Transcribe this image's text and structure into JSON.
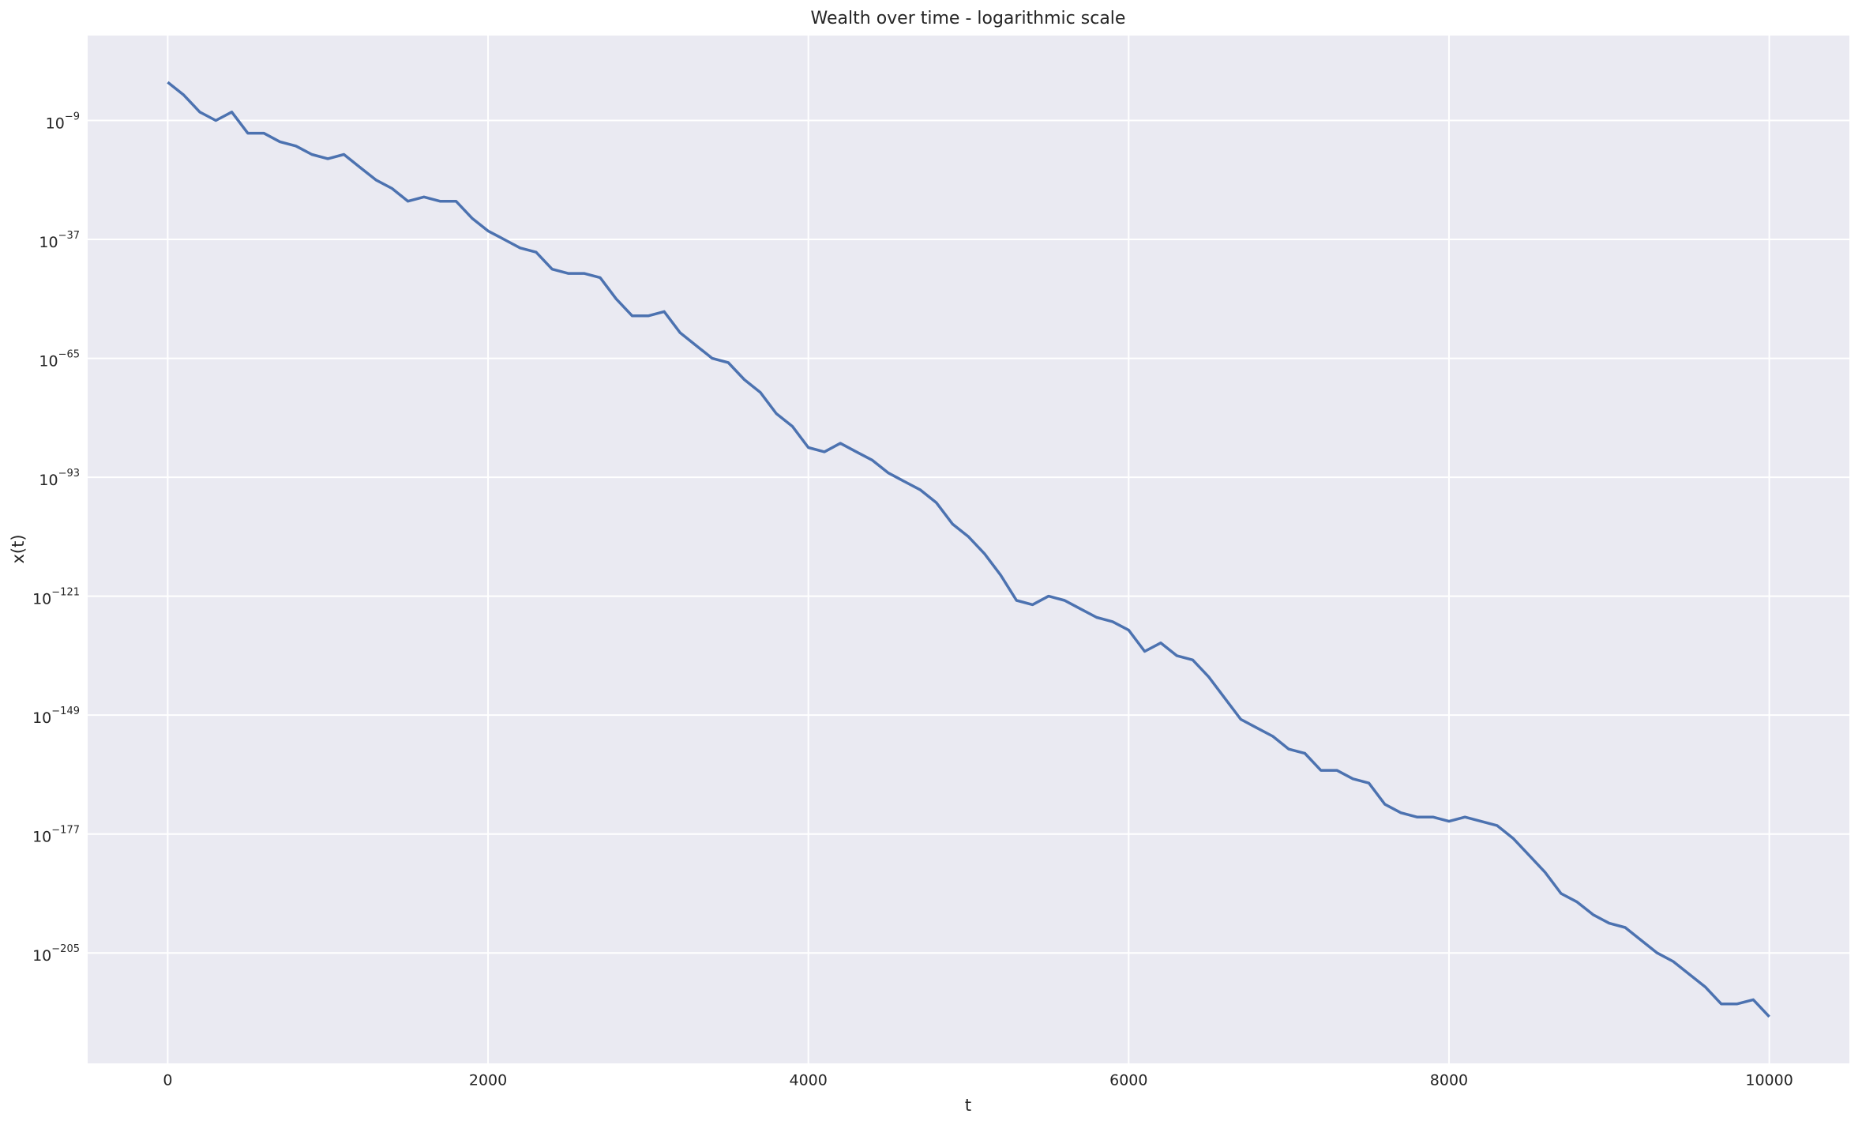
{
  "chart_data": {
    "type": "line",
    "title": "Wealth over time - logarithmic scale",
    "x_label": "t",
    "y_label": "x(t)",
    "y_scale": "log",
    "grid": true,
    "x": [
      0,
      100,
      200,
      300,
      400,
      500,
      600,
      700,
      800,
      900,
      1000,
      1100,
      1200,
      1300,
      1400,
      1500,
      1600,
      1700,
      1800,
      1900,
      2000,
      2100,
      2200,
      2300,
      2400,
      2500,
      2600,
      2700,
      2800,
      2900,
      3000,
      3100,
      3200,
      3300,
      3400,
      3500,
      3600,
      3700,
      3800,
      3900,
      4000,
      4100,
      4200,
      4300,
      4400,
      4500,
      4600,
      4700,
      4800,
      4900,
      5000,
      5100,
      5200,
      5300,
      5400,
      5500,
      5600,
      5700,
      5800,
      5900,
      6000,
      6100,
      6200,
      6300,
      6400,
      6500,
      6600,
      6700,
      6800,
      6900,
      7000,
      7100,
      7200,
      7300,
      7400,
      7500,
      7600,
      7700,
      7800,
      7900,
      8000,
      8100,
      8200,
      8300,
      8400,
      8500,
      8600,
      8700,
      8800,
      8900,
      9000,
      9100,
      9200,
      9300,
      9400,
      9500,
      9600,
      9700,
      9800,
      9900,
      10000
    ],
    "series": [
      {
        "name": "x(t)",
        "color": "#4c72b0",
        "values": [
          1,
          0.001,
          1e-07,
          1e-09,
          1e-07,
          1e-12,
          1e-12,
          1e-14,
          1e-15,
          1e-17,
          1e-18,
          1e-17,
          1e-20,
          1e-23,
          1e-25,
          1e-28,
          1e-27,
          1e-28,
          1e-28,
          1e-32,
          1e-35,
          1e-37,
          1e-39,
          1e-40,
          1e-44,
          1e-45,
          1e-45,
          1e-46,
          1e-51,
          1e-55,
          1e-55,
          1e-54,
          1e-59,
          1e-62,
          1e-65,
          1e-66,
          1e-70,
          1e-73,
          1e-78,
          1e-81,
          1e-86,
          1e-87,
          1e-85,
          1e-87,
          1e-89,
          1e-92,
          1e-94,
          1e-96,
          1e-99,
          1e-104,
          1e-107,
          1e-111,
          1e-116,
          1e-122,
          1e-123,
          1e-121,
          1e-122,
          1e-124,
          1e-126,
          1e-127,
          1e-129,
          1e-134,
          1e-132,
          1e-135,
          1e-136,
          1e-140,
          1e-145,
          1e-150,
          1e-152,
          1e-154,
          1e-157,
          1e-158,
          1e-162,
          1e-162,
          1e-164,
          1e-165,
          1e-170,
          1e-172,
          1e-173,
          1e-173,
          1e-174,
          1e-173,
          1e-174,
          1e-175,
          1e-178,
          1e-182,
          1e-186,
          1e-191,
          1e-193,
          1e-196,
          1e-198,
          1e-199,
          1e-202,
          1e-205,
          1e-207,
          1e-210,
          1e-213,
          1e-217,
          1e-217,
          1e-216,
          1e-220
        ]
      }
    ],
    "xlim": [
      -500,
      10500
    ],
    "xticks": [
      0,
      2000,
      4000,
      6000,
      8000,
      10000
    ],
    "ylim": [
      1e-231,
      100000000000.0
    ],
    "yticks": [
      {
        "value": 1e-09,
        "label": "10−9"
      },
      {
        "value": 1e-37,
        "label": "10−37"
      },
      {
        "value": 1e-65,
        "label": "10−65"
      },
      {
        "value": 1e-93,
        "label": "10−93"
      },
      {
        "value": 1e-121,
        "label": "10−121"
      },
      {
        "value": 1e-149,
        "label": "10−149"
      },
      {
        "value": 1e-177,
        "label": "10−177"
      },
      {
        "value": 1e-205,
        "label": "10−205"
      }
    ]
  }
}
